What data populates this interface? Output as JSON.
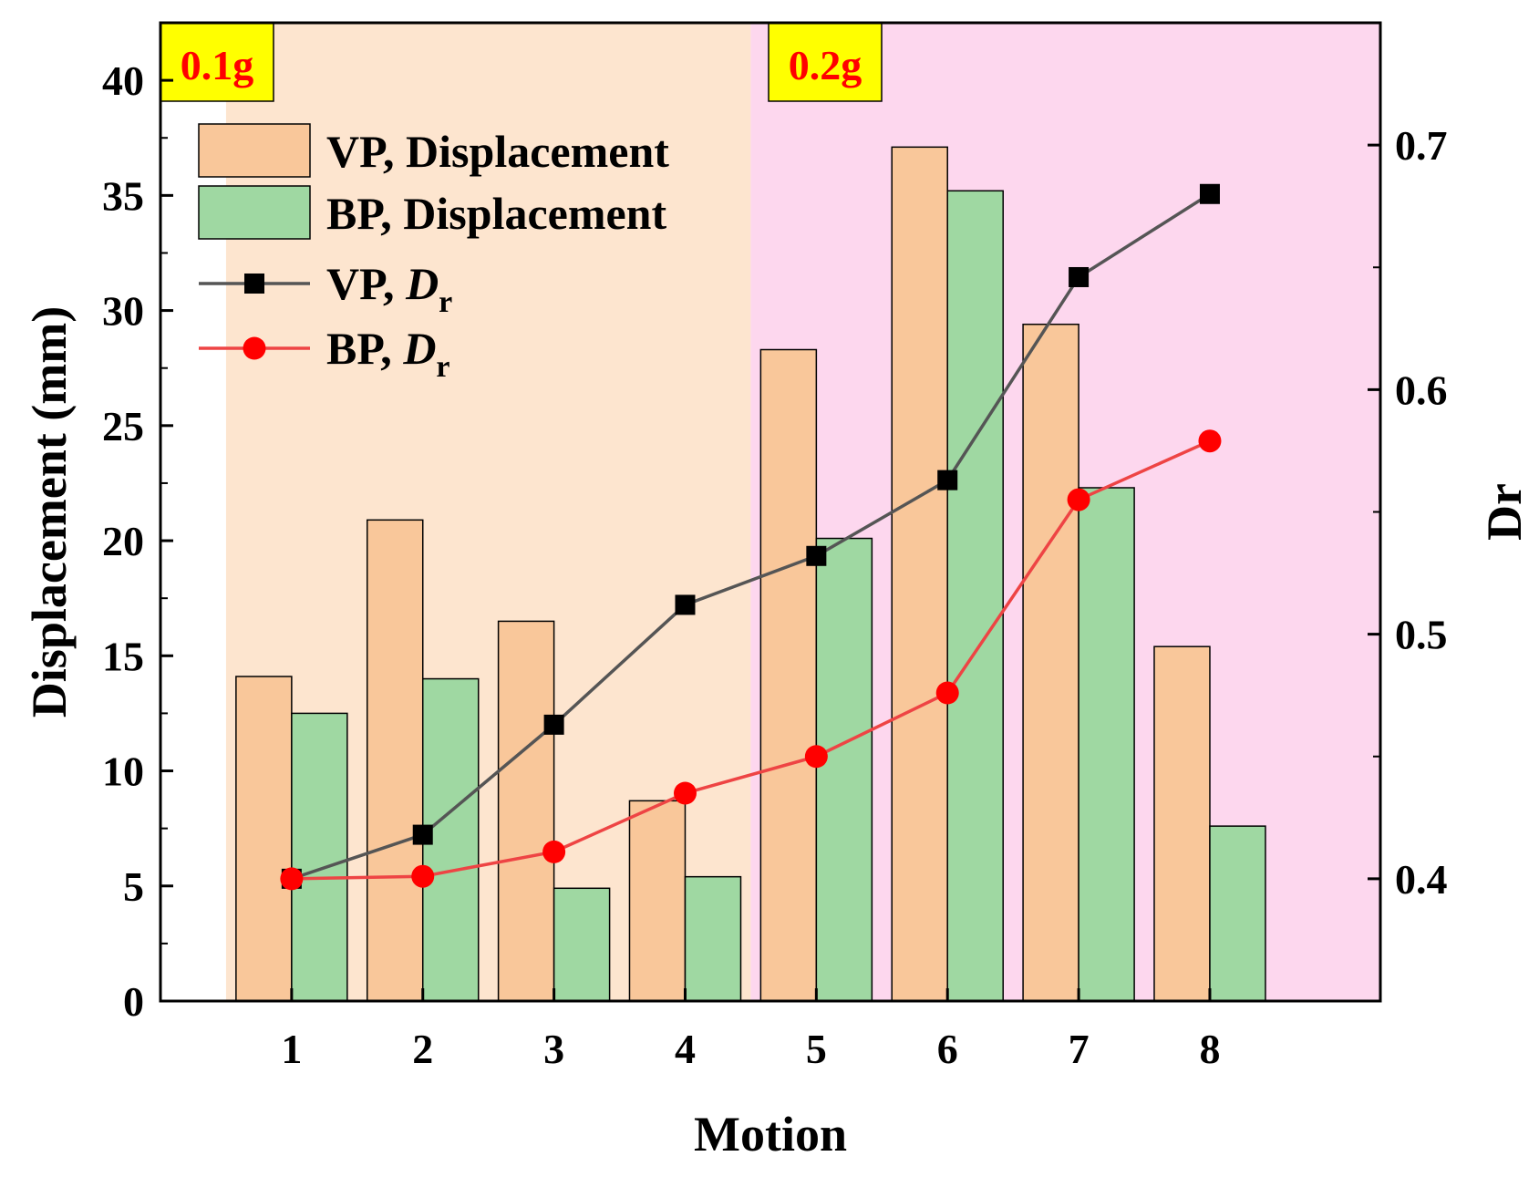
{
  "chart_data": {
    "type": "bar",
    "categories": [
      "1",
      "2",
      "3",
      "4",
      "5",
      "6",
      "7",
      "8"
    ],
    "xlabel": "Motion",
    "ylabel": "Displacement (mm)",
    "ylabel_right": "Dr",
    "ylim": [
      0,
      42.5
    ],
    "ylim_right": [
      0.35,
      0.75
    ],
    "yticks": [
      0,
      5,
      10,
      15,
      20,
      25,
      30,
      35,
      40
    ],
    "yticks_right": [
      0.4,
      0.5,
      0.6,
      0.7
    ],
    "regions": [
      {
        "label": "0.1g",
        "from": 0.5,
        "to": 4.5,
        "color": "#fde5cf"
      },
      {
        "label": "0.2g",
        "from": 4.5,
        "to": 9.3,
        "color": "#fdd7ee"
      }
    ],
    "bar_series": [
      {
        "name": "VP, Displacement",
        "color": "#f9c79a",
        "values": [
          14.1,
          20.9,
          16.5,
          8.7,
          28.3,
          37.1,
          29.4,
          15.4
        ]
      },
      {
        "name": "BP, Displacement",
        "color": "#9fd8a2",
        "values": [
          12.5,
          14.0,
          4.9,
          5.4,
          20.1,
          35.2,
          22.3,
          7.6
        ]
      }
    ],
    "line_series": [
      {
        "name": "VP, ",
        "subscript_label": "D",
        "subscript": "r",
        "color": "#555555",
        "marker": "square",
        "marker_color": "#000000",
        "values": [
          0.4,
          0.418,
          0.463,
          0.512,
          0.532,
          0.563,
          0.646,
          0.68
        ]
      },
      {
        "name": "BP, ",
        "subscript_label": "D",
        "subscript": "r",
        "color": "#ee4444",
        "marker": "circle",
        "marker_color": "#ff0000",
        "values": [
          0.4,
          0.401,
          0.411,
          0.435,
          0.45,
          0.476,
          0.555,
          0.579
        ]
      }
    ],
    "legend_position": "top-left"
  }
}
